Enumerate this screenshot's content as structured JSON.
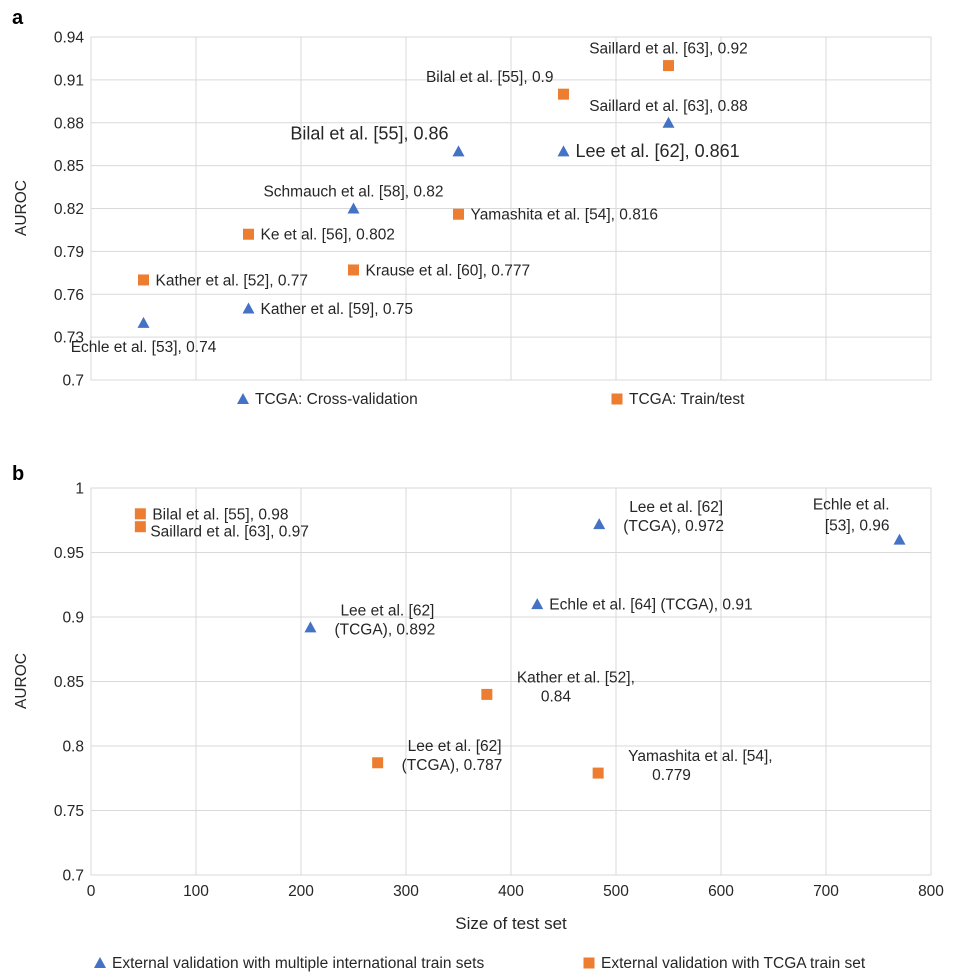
{
  "colors": {
    "triangle": "#4472c4",
    "square": "#ed7d31",
    "grid": "#d9d9d9"
  },
  "chart_data": [
    {
      "panel_label": "a",
      "type": "scatter",
      "ylabel": "AUROC",
      "xlabel": "",
      "ylim": [
        0.7,
        0.94
      ],
      "y_ticks": [
        "0.94",
        "0.91",
        "0.88",
        "0.85",
        "0.82",
        "0.79",
        "0.76",
        "0.73",
        "0.7"
      ],
      "x_category_count": 8,
      "grid": true,
      "legend": {
        "position": "bottom"
      },
      "series": [
        {
          "name": "TCGA: Cross-validation",
          "marker": "triangle",
          "points": [
            {
              "x": 0.5,
              "y": 0.74,
              "label": "Echle et al. [53], 0.74",
              "pos": "below"
            },
            {
              "x": 1.5,
              "y": 0.75,
              "label": "Kather et al. [59], 0.75",
              "pos": "right"
            },
            {
              "x": 2.5,
              "y": 0.82,
              "label": "Schmauch et al. [58], 0.82",
              "pos": "above"
            },
            {
              "x": 3.5,
              "y": 0.86,
              "label": "Bilal et al. [55], 0.86",
              "pos": "above-left",
              "big": true
            },
            {
              "x": 4.5,
              "y": 0.86,
              "label": "Lee et al. [62], 0.861",
              "pos": "right",
              "big": true
            },
            {
              "x": 5.5,
              "y": 0.88,
              "label": "Saillard et al. [63], 0.88",
              "pos": "above"
            }
          ]
        },
        {
          "name": "TCGA: Train/test",
          "marker": "square",
          "points": [
            {
              "x": 0.5,
              "y": 0.77,
              "label": "Kather et al. [52], 0.77",
              "pos": "right"
            },
            {
              "x": 1.5,
              "y": 0.802,
              "label": "Ke et al. [56], 0.802",
              "pos": "right"
            },
            {
              "x": 2.5,
              "y": 0.777,
              "label": "Krause et al. [60], 0.777",
              "pos": "right"
            },
            {
              "x": 3.5,
              "y": 0.816,
              "label": "Yamashita et al. [54], 0.816",
              "pos": "right"
            },
            {
              "x": 4.5,
              "y": 0.9,
              "label": "Bilal et al. [55], 0.9",
              "pos": "above-left"
            },
            {
              "x": 5.5,
              "y": 0.92,
              "label": "Saillard et al. [63], 0.92",
              "pos": "above"
            }
          ]
        }
      ]
    },
    {
      "panel_label": "b",
      "type": "scatter",
      "ylabel": "AUROC",
      "xlabel": "Size of test set",
      "xlim": [
        0,
        800
      ],
      "ylim": [
        0.7,
        1
      ],
      "x_ticks": [
        "0",
        "100",
        "200",
        "300",
        "400",
        "500",
        "600",
        "700",
        "800"
      ],
      "y_ticks": [
        "1",
        "0.95",
        "0.9",
        "0.85",
        "0.8",
        "0.75",
        "0.7"
      ],
      "grid": true,
      "legend": {
        "position": "bottom"
      },
      "series": [
        {
          "name": "External validation with multiple international train sets",
          "marker": "triangle",
          "points": [
            {
              "x": 209,
              "y": 0.892,
              "label": [
                "Lee et al. [62]",
                "(TCGA), 0.892"
              ],
              "pos": "above-right"
            },
            {
              "x": 425,
              "y": 0.91,
              "label": "Echle et al. [64] (TCGA), 0.91",
              "pos": "right"
            },
            {
              "x": 484,
              "y": 0.972,
              "label": [
                "Lee et al. [62]",
                "(TCGA), 0.972"
              ],
              "pos": "above-right"
            },
            {
              "x": 770,
              "y": 0.96,
              "label": [
                "Echle et al.",
                "[53], 0.96"
              ],
              "pos": "above-left"
            }
          ]
        },
        {
          "name": "External validation with TCGA train set",
          "marker": "square",
          "points": [
            {
              "x": 47,
              "y": 0.98,
              "label": "Bilal et al. [55], 0.98",
              "pos": "right"
            },
            {
              "x": 47,
              "y": 0.97,
              "label": "Saillard et al. [63], 0.97",
              "pos": "right-low"
            },
            {
              "x": 377,
              "y": 0.84,
              "label": [
                "Kather et al. [52],",
                "0.84"
              ],
              "pos": "above-right"
            },
            {
              "x": 273,
              "y": 0.787,
              "label": [
                "Lee et al. [62]",
                "(TCGA), 0.787"
              ],
              "pos": "above-right"
            },
            {
              "x": 483,
              "y": 0.779,
              "label": [
                "Yamashita et al. [54],",
                "0.779"
              ],
              "pos": "above-right"
            }
          ]
        }
      ]
    }
  ]
}
